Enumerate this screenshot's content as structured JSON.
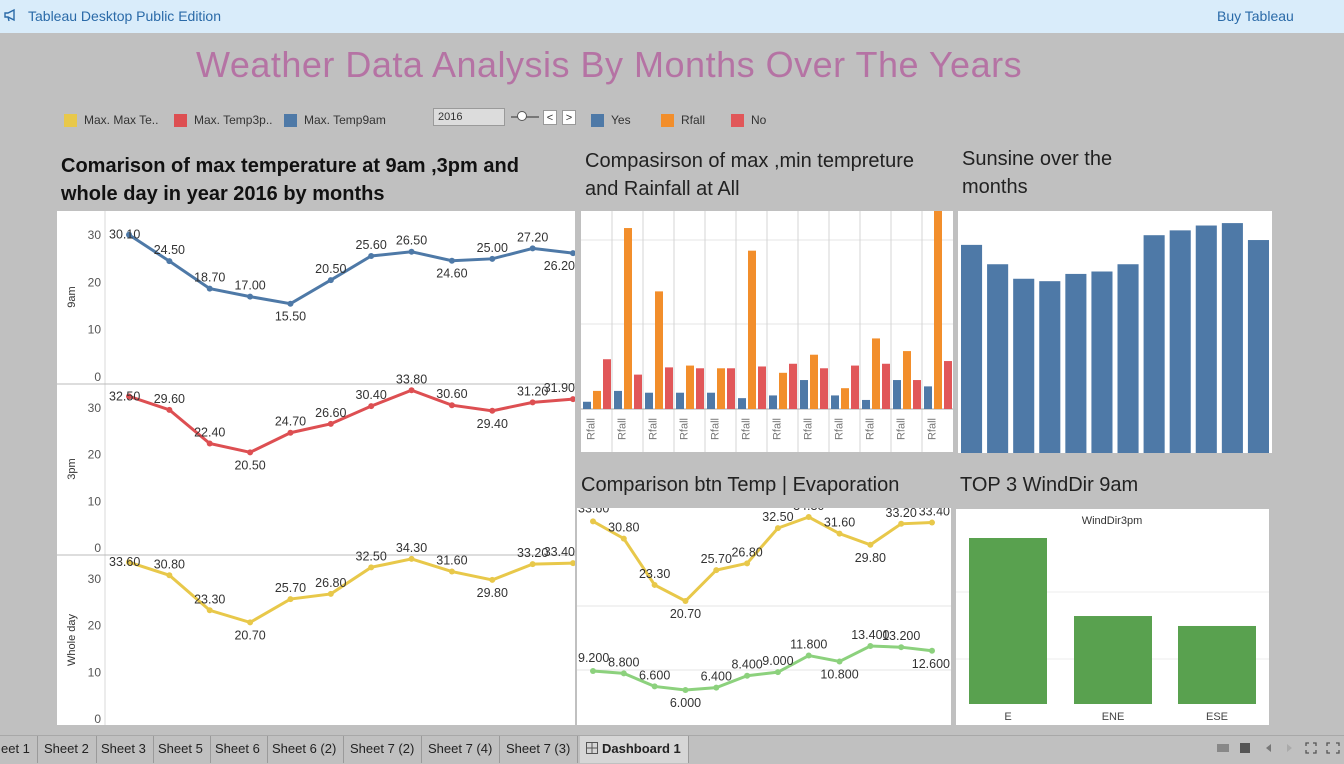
{
  "app": {
    "title": "Tableau Desktop Public Edition",
    "buy_label": "Buy Tableau"
  },
  "dashboard": {
    "title": "Weather Data Analysis By Months Over The Years"
  },
  "legend_left": [
    {
      "label": "Max. Max Te..",
      "color": "#e8c84a"
    },
    {
      "label": "Max. Temp3p..",
      "color": "#dd4f52"
    },
    {
      "label": "Max. Temp9am",
      "color": "#4e79a7"
    }
  ],
  "year_filter": {
    "value": "2016",
    "prev": "<",
    "next": ">"
  },
  "legend_right": [
    {
      "label": "Yes",
      "color": "#4e79a7"
    },
    {
      "label": "Rfall",
      "color": "#f28e2b"
    },
    {
      "label": "No",
      "color": "#e15759"
    }
  ],
  "sheets": {
    "temp_title": "Comarison of max temperature at 9am ,3pm and whole day in year 2016 by months",
    "rain_title": "Compasirson of max ,min tempreture and Rainfall at All",
    "sun_title": "Sunsine over the months",
    "evap_title": "Comparison btn Temp | Evaporation",
    "wind_title": "TOP 3 WindDir 9am"
  },
  "colors": {
    "blue": "#4e79a7",
    "red": "#dd4f52",
    "yellow": "#e8c84a",
    "orange": "#f28e2b",
    "green": "#59a14f",
    "lightgreen": "#8cd17d"
  },
  "chart_data": [
    {
      "type": "line",
      "title": "Comarison of max temperature at 9am ,3pm and whole day in year 2016 by months",
      "x": [
        1,
        2,
        3,
        4,
        5,
        6,
        7,
        8,
        9,
        10,
        11,
        12
      ],
      "ylim": [
        0,
        33
      ],
      "yticks": [
        0,
        10,
        20,
        30
      ],
      "series": [
        {
          "name": "9am",
          "color": "#4e79a7",
          "values": [
            30.1,
            24.5,
            18.7,
            17.0,
            15.5,
            20.5,
            25.6,
            26.5,
            24.6,
            25.0,
            27.2,
            26.2
          ],
          "labels": [
            "30.10",
            "24.50",
            "18.70",
            "17.00",
            "15.50",
            "20.50",
            "25.60",
            "26.50",
            "24.60",
            "25.00",
            "27.20",
            "26.20"
          ]
        },
        {
          "name": "3pm",
          "color": "#dd4f52",
          "values": [
            32.5,
            29.6,
            22.4,
            20.5,
            24.7,
            26.6,
            30.4,
            33.8,
            30.6,
            29.4,
            31.2,
            31.9
          ],
          "labels": [
            "32.50",
            "29.60",
            "22.40",
            "20.50",
            "24.70",
            "26.60",
            "30.40",
            "33.80",
            "30.60",
            "29.40",
            "31.20",
            "31.90"
          ]
        },
        {
          "name": "Whole day",
          "color": "#e8c84a",
          "values": [
            33.6,
            30.8,
            23.3,
            20.7,
            25.7,
            26.8,
            32.5,
            34.3,
            31.6,
            29.8,
            33.2,
            33.4
          ],
          "labels": [
            "33.60",
            "30.80",
            "23.30",
            "20.70",
            "25.70",
            "26.80",
            "32.50",
            "34.30",
            "31.60",
            "29.80",
            "33.20",
            "33.40"
          ]
        }
      ]
    },
    {
      "type": "bar",
      "title": "Compasirson of max ,min tempreture and Rainfall at All",
      "categories": [
        "Rfall",
        "Rfall",
        "Rfall",
        "Rfall",
        "Rfall",
        "Rfall",
        "Rfall",
        "Rfall",
        "Rfall",
        "Rfall",
        "Rfall",
        "Rfall"
      ],
      "ymax": 210,
      "series": [
        {
          "name": "Yes",
          "color": "#4e79a7",
          "values": [
            8,
            20,
            18,
            18,
            18,
            12,
            15,
            32,
            15,
            10,
            32,
            25
          ]
        },
        {
          "name": "Rfall",
          "color": "#f28e2b",
          "values": [
            20,
            200,
            130,
            48,
            45,
            175,
            40,
            60,
            23,
            78,
            64,
            135
          ]
        },
        {
          "name": "No",
          "color": "#e15759",
          "values": [
            55,
            38,
            46,
            45,
            45,
            47,
            50,
            45,
            48,
            50,
            32,
            53
          ]
        }
      ],
      "extra_orange": 220
    },
    {
      "type": "bar",
      "title": "Sunsine over the months",
      "categories": [
        "1",
        "2",
        "3",
        "4",
        "5",
        "6",
        "7",
        "8",
        "9",
        "10",
        "11",
        "12"
      ],
      "values": [
        8.6,
        7.8,
        7.2,
        7.1,
        7.4,
        7.5,
        7.8,
        9.0,
        9.2,
        9.4,
        9.5,
        8.8
      ],
      "ymax": 10,
      "color": "#4e79a7"
    },
    {
      "type": "line",
      "title": "Comparison btn Temp | Evaporation",
      "x": [
        1,
        2,
        3,
        4,
        5,
        6,
        7,
        8,
        9,
        10,
        11,
        12
      ],
      "series": [
        {
          "name": "Temp",
          "color": "#e8c84a",
          "values": [
            33.6,
            30.8,
            23.3,
            20.7,
            25.7,
            26.8,
            32.5,
            34.3,
            31.6,
            29.8,
            33.2,
            33.4
          ],
          "labels": [
            "33.60",
            "30.80",
            "23.30",
            "20.70",
            "25.70",
            "26.80",
            "32.50",
            "34.30",
            "31.60",
            "29.80",
            "33.20",
            "33.40"
          ]
        },
        {
          "name": "Evaporation",
          "color": "#8cd17d",
          "values": [
            9.2,
            8.8,
            6.6,
            6.0,
            6.4,
            8.4,
            9.0,
            11.8,
            10.8,
            13.4,
            13.2,
            12.6
          ],
          "labels": [
            "9.200",
            "8.800",
            "6.600",
            "6.000",
            "6.400",
            "8.400",
            "9.000",
            "11.800",
            "10.800",
            "13.400",
            "13.200",
            "12.600"
          ]
        }
      ]
    },
    {
      "type": "bar",
      "title": "WindDir3pm",
      "categories": [
        "E",
        "ENE",
        "ESE"
      ],
      "values": [
        100,
        53,
        47
      ],
      "ymax": 110,
      "color": "#59a14f"
    }
  ],
  "tabs": [
    {
      "label": "eet 1"
    },
    {
      "label": "Sheet 2"
    },
    {
      "label": "Sheet 3"
    },
    {
      "label": "Sheet 5"
    },
    {
      "label": "Sheet 6"
    },
    {
      "label": "Sheet 6 (2)"
    },
    {
      "label": "Sheet 7 (2)"
    },
    {
      "label": "Sheet 7 (4)"
    },
    {
      "label": "Sheet 7 (3)"
    },
    {
      "label": "Dashboard 1",
      "active": true
    }
  ]
}
